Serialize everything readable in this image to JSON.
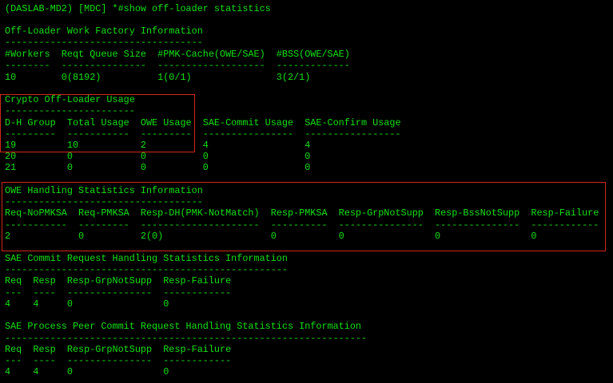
{
  "prompt": "(DASLAB-MD2) [MDC] *#show off-loader statistics",
  "colors": {
    "text": "#14e014",
    "background": "#000000",
    "highlight_box": "#d0281a"
  },
  "sections": [
    {
      "title": "Off-Loader Work Factory Information",
      "rule": "-----------------------------------",
      "header": "#Workers  Reqt Queue Size  #PMK-Cache(OWE/SAE)  #BSS(OWE/SAE)",
      "header_rule": "--------  ---------------  -------------------  -------------",
      "rows": [
        "10        0(8192)          1(0/1)               3(2/1)"
      ]
    },
    {
      "title": "Crypto Off-Loader Usage",
      "rule": "-----------------------",
      "header": "D-H Group  Total Usage  OWE Usage  SAE-Commit Usage  SAE-Confirm Usage",
      "header_rule": "---------  -----------  ---------  ----------------  -----------------",
      "rows": [
        "19         10           2          4                 4",
        "20         0            0          0                 0",
        "21         0            0          0                 0"
      ]
    },
    {
      "title": "OWE Handling Statistics Information",
      "rule": "-----------------------------------",
      "header": "Req-NoPMKSA  Req-PMKSA  Resp-DH(PMK-NotMatch)  Resp-PMKSA  Resp-GrpNotSupp  Resp-BssNotSupp  Resp-Failure",
      "header_rule": "-----------  ---------  ---------------------  ----------  ---------------  ---------------  ------------",
      "rows": [
        "2            0          2(0)                   0           0                0                0"
      ]
    },
    {
      "title": "SAE Commit Request Handling Statistics Information",
      "rule": "--------------------------------------------------",
      "header": "Req  Resp  Resp-GrpNotSupp  Resp-Failure",
      "header_rule": "---  ----  ---------------  ------------",
      "rows": [
        "4    4     0                0"
      ]
    },
    {
      "title": "SAE Process Peer Commit Request Handling Statistics Information",
      "rule": "----------------------------------------------------------------",
      "header": "Req  Resp  Resp-GrpNotSupp  Resp-Failure",
      "header_rule": "---  ----  ---------------  ------------",
      "rows": [
        "4    4     0                0"
      ]
    }
  ]
}
